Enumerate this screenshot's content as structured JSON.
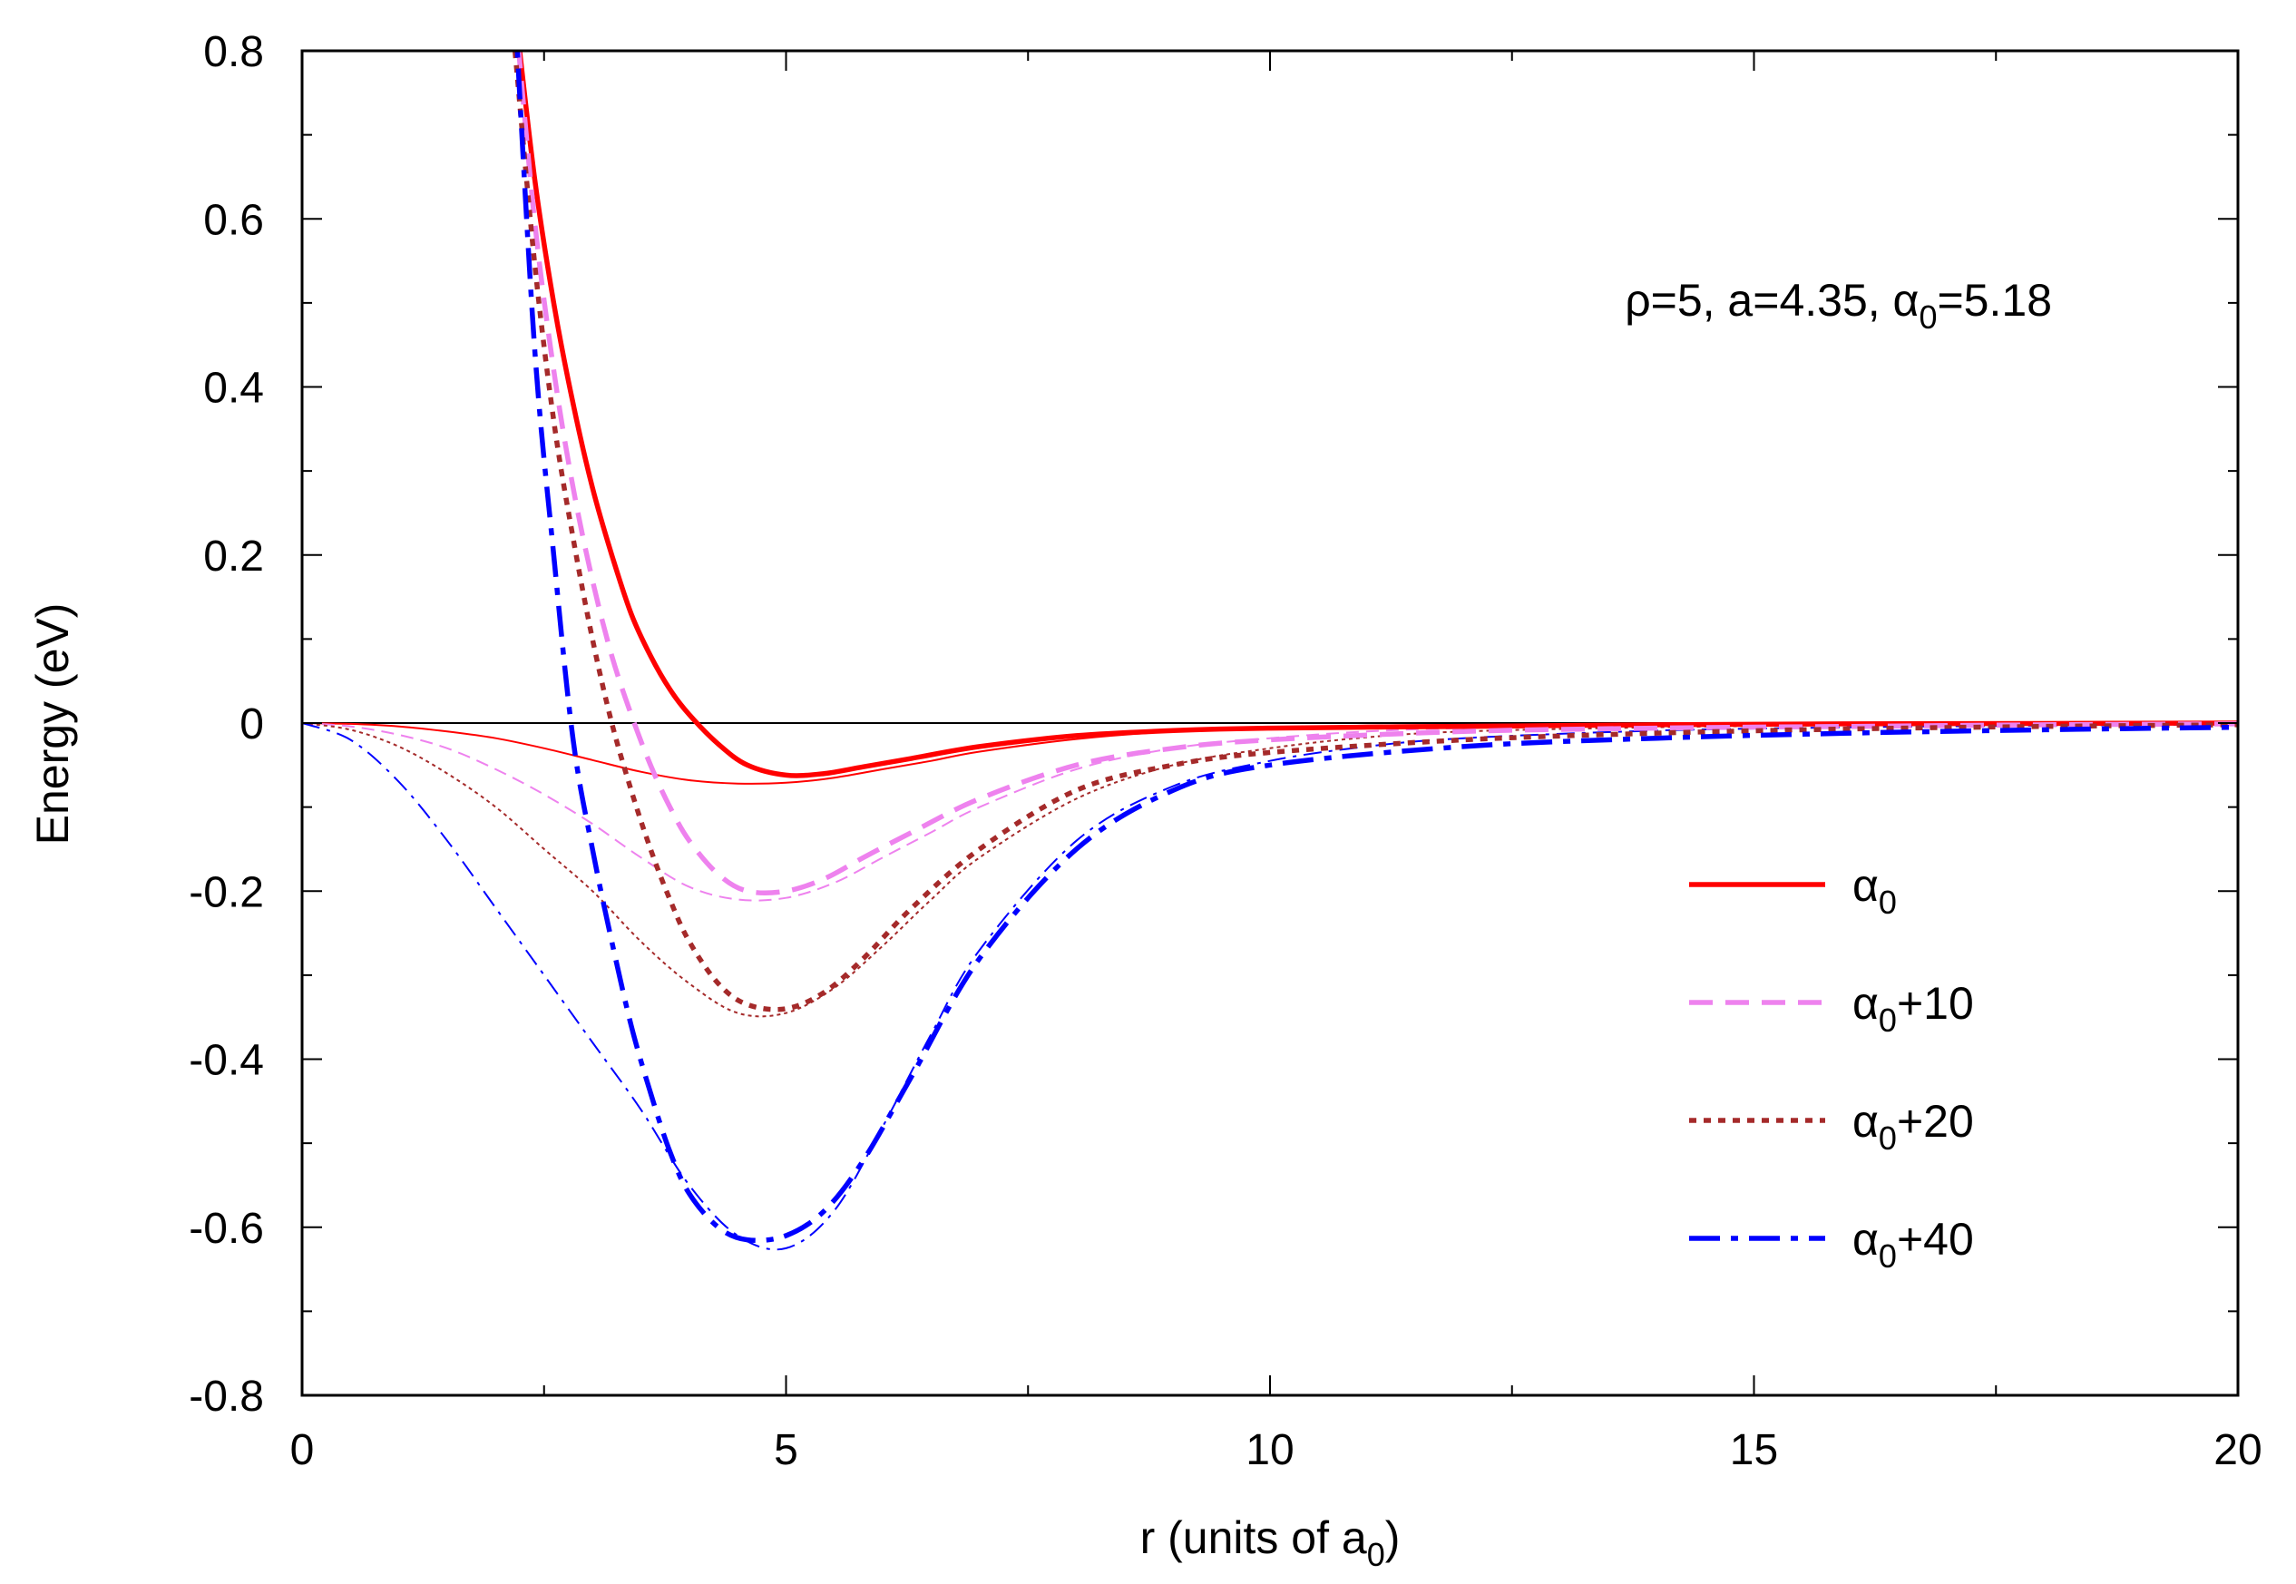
{
  "chart_data": {
    "type": "line",
    "xlabel": {
      "text": "r (units of a",
      "sub": "0",
      "tail": ")"
    },
    "ylabel": "Energy (eV)",
    "xlim": [
      0,
      20
    ],
    "ylim": [
      -0.8,
      0.8
    ],
    "xticks": [
      0,
      5,
      10,
      15,
      20
    ],
    "xtick_labels": [
      "0",
      "5",
      "10",
      "15",
      "20"
    ],
    "yticks": [
      0.8,
      0.6,
      0.4,
      0.2,
      0,
      -0.2,
      -0.4,
      -0.6,
      -0.8
    ],
    "ytick_labels": [
      "0.8",
      "0.6",
      "0.4",
      "0.2",
      "0",
      "-0.2",
      "-0.4",
      "-0.6",
      "-0.8"
    ],
    "annotation": {
      "pre": "ρ=5, a=4.35, α",
      "sub": "0",
      "post": "=5.18"
    },
    "zero_line": true,
    "legend_position": "right-center",
    "series": [
      {
        "name": "α0",
        "label_main": "α",
        "label_sub": "0",
        "label_post": "",
        "color": "#ff0000",
        "style": "solid",
        "x": [
          2.2,
          2.4,
          2.6,
          2.8,
          3.0,
          3.2,
          3.4,
          3.6,
          3.8,
          4.0,
          4.3,
          4.6,
          5.0,
          5.4,
          5.8,
          6.3,
          7.0,
          8.0,
          9.0,
          10.0,
          12.0,
          14.0,
          16.0,
          18.0,
          20.0
        ],
        "y": [
          0.85,
          0.65,
          0.5,
          0.38,
          0.28,
          0.2,
          0.13,
          0.08,
          0.04,
          0.01,
          -0.025,
          -0.05,
          -0.062,
          -0.06,
          -0.052,
          -0.042,
          -0.028,
          -0.015,
          -0.009,
          -0.006,
          -0.004,
          -0.002,
          -0.001,
          -0.0005,
          0.0
        ]
      },
      {
        "name": "α0+10",
        "label_main": "α",
        "label_sub": "0",
        "label_post": "+10",
        "color": "#ee82ee",
        "style": "dashed",
        "x": [
          2.2,
          2.4,
          2.6,
          2.8,
          3.0,
          3.2,
          3.4,
          3.6,
          3.8,
          4.0,
          4.3,
          4.6,
          5.0,
          5.4,
          5.8,
          6.3,
          7.0,
          8.0,
          9.0,
          10.0,
          12.0,
          14.0,
          16.0,
          18.0,
          20.0
        ],
        "y": [
          0.85,
          0.6,
          0.42,
          0.28,
          0.17,
          0.08,
          0.01,
          -0.05,
          -0.1,
          -0.14,
          -0.18,
          -0.2,
          -0.2,
          -0.185,
          -0.16,
          -0.13,
          -0.09,
          -0.05,
          -0.03,
          -0.02,
          -0.01,
          -0.006,
          -0.004,
          -0.002,
          -0.001
        ]
      },
      {
        "name": "α0+20",
        "label_main": "α",
        "label_sub": "0",
        "label_post": "+20",
        "color": "#a52a2a",
        "style": "dotted",
        "x": [
          2.2,
          2.4,
          2.6,
          2.8,
          3.0,
          3.2,
          3.4,
          3.6,
          3.8,
          4.0,
          4.3,
          4.6,
          5.0,
          5.4,
          5.8,
          6.3,
          7.0,
          8.0,
          9.0,
          10.0,
          12.0,
          14.0,
          16.0,
          18.0,
          20.0
        ],
        "y": [
          0.8,
          0.55,
          0.36,
          0.22,
          0.1,
          0.0,
          -0.08,
          -0.15,
          -0.21,
          -0.26,
          -0.31,
          -0.335,
          -0.34,
          -0.32,
          -0.28,
          -0.22,
          -0.15,
          -0.08,
          -0.05,
          -0.035,
          -0.02,
          -0.012,
          -0.007,
          -0.004,
          -0.002
        ]
      },
      {
        "name": "α0+40",
        "label_main": "α",
        "label_sub": "0",
        "label_post": "+40",
        "color": "#0000ff",
        "style": "dashdot",
        "x": [
          2.2,
          2.4,
          2.6,
          2.8,
          3.0,
          3.2,
          3.4,
          3.6,
          3.8,
          4.0,
          4.3,
          4.6,
          5.0,
          5.4,
          5.8,
          6.3,
          7.0,
          8.0,
          9.0,
          10.0,
          12.0,
          14.0,
          16.0,
          18.0,
          20.0
        ],
        "y": [
          0.85,
          0.45,
          0.2,
          -0.02,
          -0.15,
          -0.26,
          -0.36,
          -0.44,
          -0.51,
          -0.56,
          -0.6,
          -0.615,
          -0.61,
          -0.58,
          -0.52,
          -0.42,
          -0.28,
          -0.15,
          -0.08,
          -0.05,
          -0.028,
          -0.018,
          -0.012,
          -0.008,
          -0.005
        ]
      },
      {
        "name": "α0 (thin)",
        "legend": false,
        "color": "#ff0000",
        "style": "solid-thin",
        "x": [
          0,
          0.5,
          1.0,
          1.5,
          2.0,
          2.5,
          3.0,
          3.5,
          4.0,
          4.5,
          5.0,
          5.5,
          6.0,
          6.5,
          7.0,
          8.0,
          9.0,
          10.0,
          11.0,
          12.0,
          14.0,
          16.0,
          18.0,
          20.0
        ],
        "y": [
          0.0,
          -0.001,
          -0.004,
          -0.01,
          -0.018,
          -0.03,
          -0.044,
          -0.058,
          -0.068,
          -0.072,
          -0.071,
          -0.065,
          -0.055,
          -0.045,
          -0.034,
          -0.019,
          -0.01,
          -0.006,
          -0.003,
          -0.002,
          -0.001,
          -0.0005,
          -0.0002,
          0.0
        ]
      },
      {
        "name": "α0+10 (thin)",
        "legend": false,
        "color": "#ee82ee",
        "style": "dashed-thin",
        "x": [
          0,
          0.5,
          1.0,
          1.5,
          2.0,
          2.5,
          3.0,
          3.5,
          4.0,
          4.5,
          5.0,
          5.5,
          6.0,
          6.5,
          7.0,
          8.0,
          9.0,
          10.0,
          11.0,
          12.0,
          14.0,
          16.0,
          18.0,
          20.0
        ],
        "y": [
          0.0,
          -0.004,
          -0.014,
          -0.03,
          -0.055,
          -0.085,
          -0.12,
          -0.16,
          -0.195,
          -0.21,
          -0.208,
          -0.19,
          -0.16,
          -0.13,
          -0.1,
          -0.055,
          -0.03,
          -0.018,
          -0.01,
          -0.006,
          -0.003,
          -0.0015,
          -0.0008,
          -0.0004
        ]
      },
      {
        "name": "α0+20 (thin)",
        "legend": false,
        "color": "#a52a2a",
        "style": "dotted-thin",
        "x": [
          0,
          0.5,
          1.0,
          1.5,
          2.0,
          2.5,
          3.0,
          3.5,
          4.0,
          4.5,
          5.0,
          5.5,
          6.0,
          6.5,
          7.0,
          8.0,
          9.0,
          10.0,
          11.0,
          12.0,
          14.0,
          16.0,
          18.0,
          20.0
        ],
        "y": [
          0.0,
          -0.008,
          -0.028,
          -0.06,
          -0.1,
          -0.15,
          -0.2,
          -0.26,
          -0.31,
          -0.345,
          -0.345,
          -0.315,
          -0.265,
          -0.21,
          -0.16,
          -0.09,
          -0.05,
          -0.03,
          -0.017,
          -0.01,
          -0.005,
          -0.0025,
          -0.0012,
          -0.0006
        ]
      },
      {
        "name": "α0+40 (thin)",
        "legend": false,
        "color": "#0000ff",
        "style": "dashdot-thin",
        "x": [
          0,
          0.5,
          1.0,
          1.5,
          2.0,
          2.5,
          3.0,
          3.5,
          4.0,
          4.5,
          5.0,
          5.5,
          6.0,
          6.5,
          7.0,
          8.0,
          9.0,
          10.0,
          11.0,
          12.0,
          14.0,
          16.0,
          18.0,
          20.0
        ],
        "y": [
          0.0,
          -0.02,
          -0.07,
          -0.14,
          -0.22,
          -0.3,
          -0.38,
          -0.46,
          -0.55,
          -0.61,
          -0.625,
          -0.58,
          -0.48,
          -0.37,
          -0.27,
          -0.14,
          -0.075,
          -0.045,
          -0.028,
          -0.018,
          -0.009,
          -0.005,
          -0.003,
          -0.0015
        ]
      }
    ]
  }
}
